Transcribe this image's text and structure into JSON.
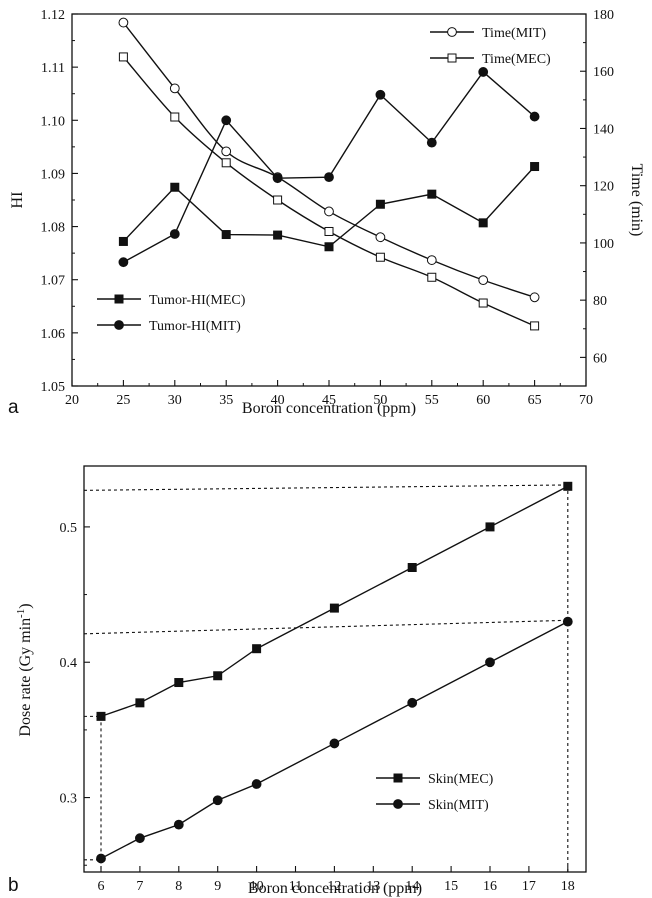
{
  "chart_data": [
    {
      "type": "line",
      "panel_label": "a",
      "xlabel": "Boron concentration (ppm)",
      "ylabel": "HI",
      "y2label": "Time (min)",
      "xlim": [
        20,
        70
      ],
      "ylim": [
        1.05,
        1.12
      ],
      "y2lim": [
        50,
        180
      ],
      "x_ticks": [
        20,
        25,
        30,
        35,
        40,
        45,
        50,
        55,
        60,
        65,
        70
      ],
      "y_ticks": [
        "1.05",
        "1.06",
        "1.07",
        "1.08",
        "1.09",
        "1.10",
        "1.11",
        "1.12"
      ],
      "y2_ticks": [
        60,
        80,
        100,
        120,
        140,
        160,
        180
      ],
      "grid": false,
      "series": [
        {
          "name": "Time(MIT)",
          "axis": "right",
          "marker": "open-circle",
          "x": [
            25,
            30,
            35,
            40,
            45,
            50,
            55,
            60,
            65
          ],
          "values": [
            177,
            154,
            132,
            123,
            111,
            102,
            94,
            87,
            81
          ]
        },
        {
          "name": "Time(MEC)",
          "axis": "right",
          "marker": "open-square",
          "x": [
            25,
            30,
            35,
            40,
            45,
            50,
            55,
            60,
            65
          ],
          "values": [
            165,
            144,
            128,
            115,
            104,
            95,
            88,
            79,
            71
          ]
        },
        {
          "name": "Tumor-HI(MEC)",
          "axis": "left",
          "marker": "filled-square",
          "x": [
            25,
            30,
            35,
            40,
            45,
            50,
            55,
            60,
            65
          ],
          "values": [
            1.0772,
            1.0874,
            1.0785,
            1.0784,
            1.0762,
            1.0842,
            1.0861,
            1.0807,
            1.0913
          ]
        },
        {
          "name": "Tumor-HI(MIT)",
          "axis": "left",
          "marker": "filled-circle",
          "x": [
            25,
            30,
            35,
            40,
            45,
            50,
            55,
            60,
            65
          ],
          "values": [
            1.0733,
            1.0786,
            1.1,
            1.0891,
            1.0893,
            1.1048,
            1.0958,
            1.1091,
            1.1007
          ]
        }
      ],
      "legends": [
        {
          "position": "top-right",
          "entries": [
            "Time(MIT)",
            "Time(MEC)"
          ]
        },
        {
          "position": "bottom-left",
          "entries": [
            "Tumor-HI(MEC)",
            "Tumor-HI(MIT)"
          ]
        }
      ]
    },
    {
      "type": "line",
      "panel_label": "b",
      "xlabel": "Boron concentration (ppm)",
      "ylabel": "Dose rate (Gy min",
      "ylabel_sup": "-1",
      "ylabel_end": ")",
      "x_categories": [
        "6",
        "7",
        "8",
        "9",
        "10",
        "11",
        "12",
        "13",
        "14",
        "15",
        "16",
        "17",
        "18"
      ],
      "ylim": [
        0.245,
        0.545
      ],
      "y_ticks": [
        "0.3",
        "0.4",
        "0.5"
      ],
      "grid": false,
      "series": [
        {
          "name": "Skin(MEC)",
          "marker": "filled-square",
          "x": [
            6,
            7,
            8,
            9,
            10,
            12,
            14,
            16,
            18
          ],
          "values": [
            0.36,
            0.37,
            0.385,
            0.39,
            0.41,
            0.44,
            0.47,
            0.5,
            0.53
          ]
        },
        {
          "name": "Skin(MIT)",
          "marker": "filled-circle",
          "x": [
            6,
            7,
            8,
            9,
            10,
            12,
            14,
            16,
            18
          ],
          "values": [
            0.255,
            0.27,
            0.28,
            0.298,
            0.31,
            0.34,
            0.37,
            0.4,
            0.43
          ]
        }
      ],
      "dashed_guides": [
        {
          "from": [
            5.45,
            0.527
          ],
          "to": [
            18,
            0.531
          ]
        },
        {
          "from": [
            5.45,
            0.421
          ],
          "to": [
            18,
            0.431
          ]
        },
        {
          "from": [
            5.45,
            0.36
          ],
          "to": [
            6,
            0.36
          ]
        },
        {
          "from": [
            5.45,
            0.254
          ],
          "to": [
            6,
            0.254
          ]
        },
        {
          "from": [
            6,
            0.36
          ],
          "to": [
            6,
            0.245
          ]
        },
        {
          "from": [
            18,
            0.531
          ],
          "to": [
            18,
            0.245
          ]
        }
      ],
      "legends": [
        {
          "position": "bottom-right",
          "entries": [
            "Skin(MEC)",
            "Skin(MIT)"
          ]
        }
      ]
    }
  ]
}
